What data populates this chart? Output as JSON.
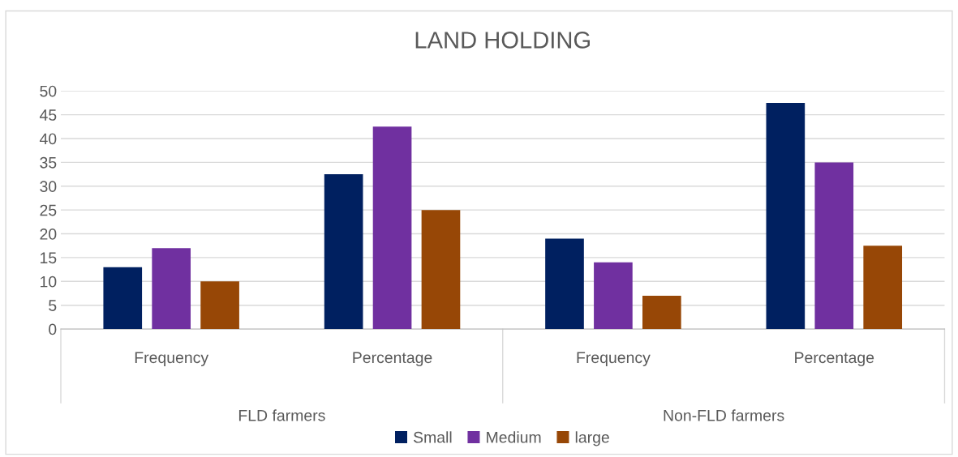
{
  "chart_data": {
    "type": "bar",
    "title": "LAND HOLDING",
    "categories": [
      "Frequency",
      "Percentage",
      "Frequency",
      "Percentage"
    ],
    "series": [
      {
        "name": "Small",
        "color": "#002060",
        "values": [
          13,
          32.5,
          19,
          47.5
        ]
      },
      {
        "name": "Medium",
        "color": "#7030a0",
        "values": [
          17,
          42.5,
          14,
          35
        ]
      },
      {
        "name": "large",
        "color": "#974706",
        "values": [
          10,
          25,
          7,
          17.5
        ]
      }
    ],
    "annotations": [
      "FLD farmers",
      "Non-FLD farmers"
    ],
    "ylim": [
      0,
      50
    ],
    "yticks": [
      0,
      5,
      10,
      15,
      20,
      25,
      30,
      35,
      40,
      45,
      50
    ],
    "grid": "y",
    "legend": "bottom"
  }
}
